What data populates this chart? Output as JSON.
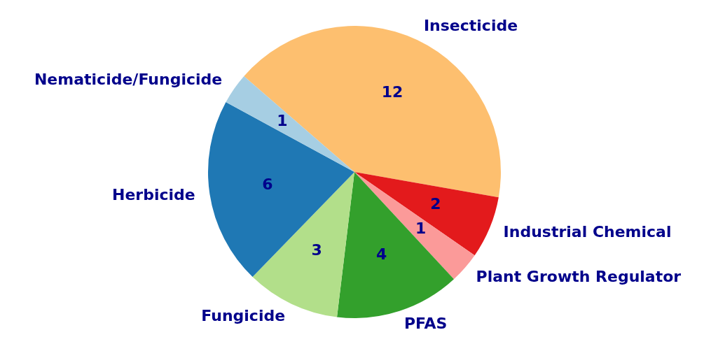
{
  "chart_data": {
    "type": "pie",
    "categories": [
      "Insecticide",
      "Industrial Chemical",
      "Plant Growth Regulator",
      "PFAS",
      "Fungicide",
      "Herbicide",
      "Nematicide/Fungicide"
    ],
    "values": [
      12,
      2,
      1,
      4,
      3,
      6,
      1
    ],
    "colors": [
      "#fdbf6f",
      "#e31a1c",
      "#fb9a99",
      "#33a02c",
      "#b2df8a",
      "#1f78b4",
      "#a6cee3"
    ],
    "data_labels": true,
    "legend": false
  }
}
